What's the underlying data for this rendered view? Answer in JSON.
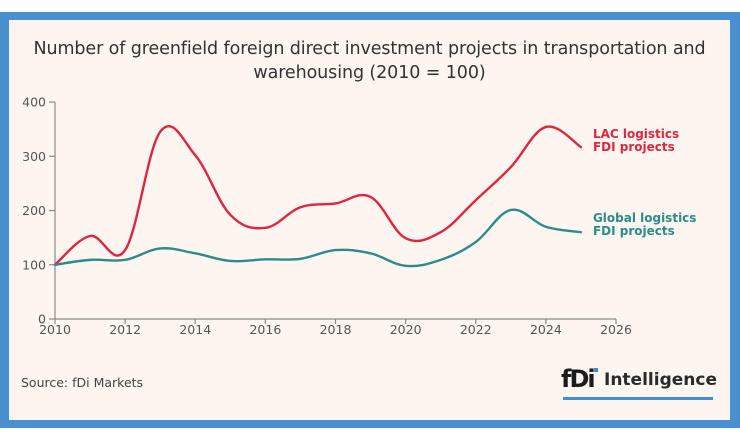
{
  "frame_color": "#4a90d0",
  "panel_color": "#fcf5f0",
  "title_line1": "Number of greenfield foreign direct investment projects in transportation and",
  "title_line2": "warehousing (2010 = 100)",
  "source": "Source: fDi Markets",
  "logo": {
    "mark": "fDi",
    "text": "Intelligence",
    "accent": "#3d8fd8"
  },
  "chart_data": {
    "type": "line",
    "title": "Number of greenfield foreign direct investment projects in transportation and warehousing (2010 = 100)",
    "xlabel": "",
    "ylabel": "",
    "x": [
      2010,
      2011,
      2012,
      2013,
      2014,
      2015,
      2016,
      2017,
      2018,
      2019,
      2020,
      2021,
      2022,
      2023,
      2024,
      2025
    ],
    "xlim": [
      2010,
      2026
    ],
    "ylim": [
      0,
      400
    ],
    "xticks": [
      "2010",
      "2012",
      "2014",
      "2016",
      "2018",
      "2020",
      "2022",
      "2024",
      "2026"
    ],
    "xtick_values": [
      2010,
      2012,
      2014,
      2016,
      2018,
      2020,
      2022,
      2024,
      2026
    ],
    "yticks": [
      "0",
      "100",
      "200",
      "300",
      "400"
    ],
    "ytick_values": [
      0,
      100,
      200,
      300,
      400
    ],
    "grid": false,
    "legend": "inline-right",
    "series": [
      {
        "name": "LAC logistics FDI projects",
        "label_lines": [
          "LAC logistics",
          "FDI projects"
        ],
        "color": "#e0263f",
        "values": [
          100,
          153,
          127,
          345,
          302,
          192,
          168,
          206,
          213,
          225,
          149,
          160,
          219,
          280,
          354,
          317
        ]
      },
      {
        "name": "Global logistics FDI projects",
        "label_lines": [
          "Global logistics",
          "FDI projects"
        ],
        "color": "#2e8b8a",
        "values": [
          100,
          109,
          109,
          130,
          121,
          107,
          110,
          111,
          127,
          121,
          98,
          109,
          142,
          201,
          170,
          160
        ]
      }
    ]
  }
}
